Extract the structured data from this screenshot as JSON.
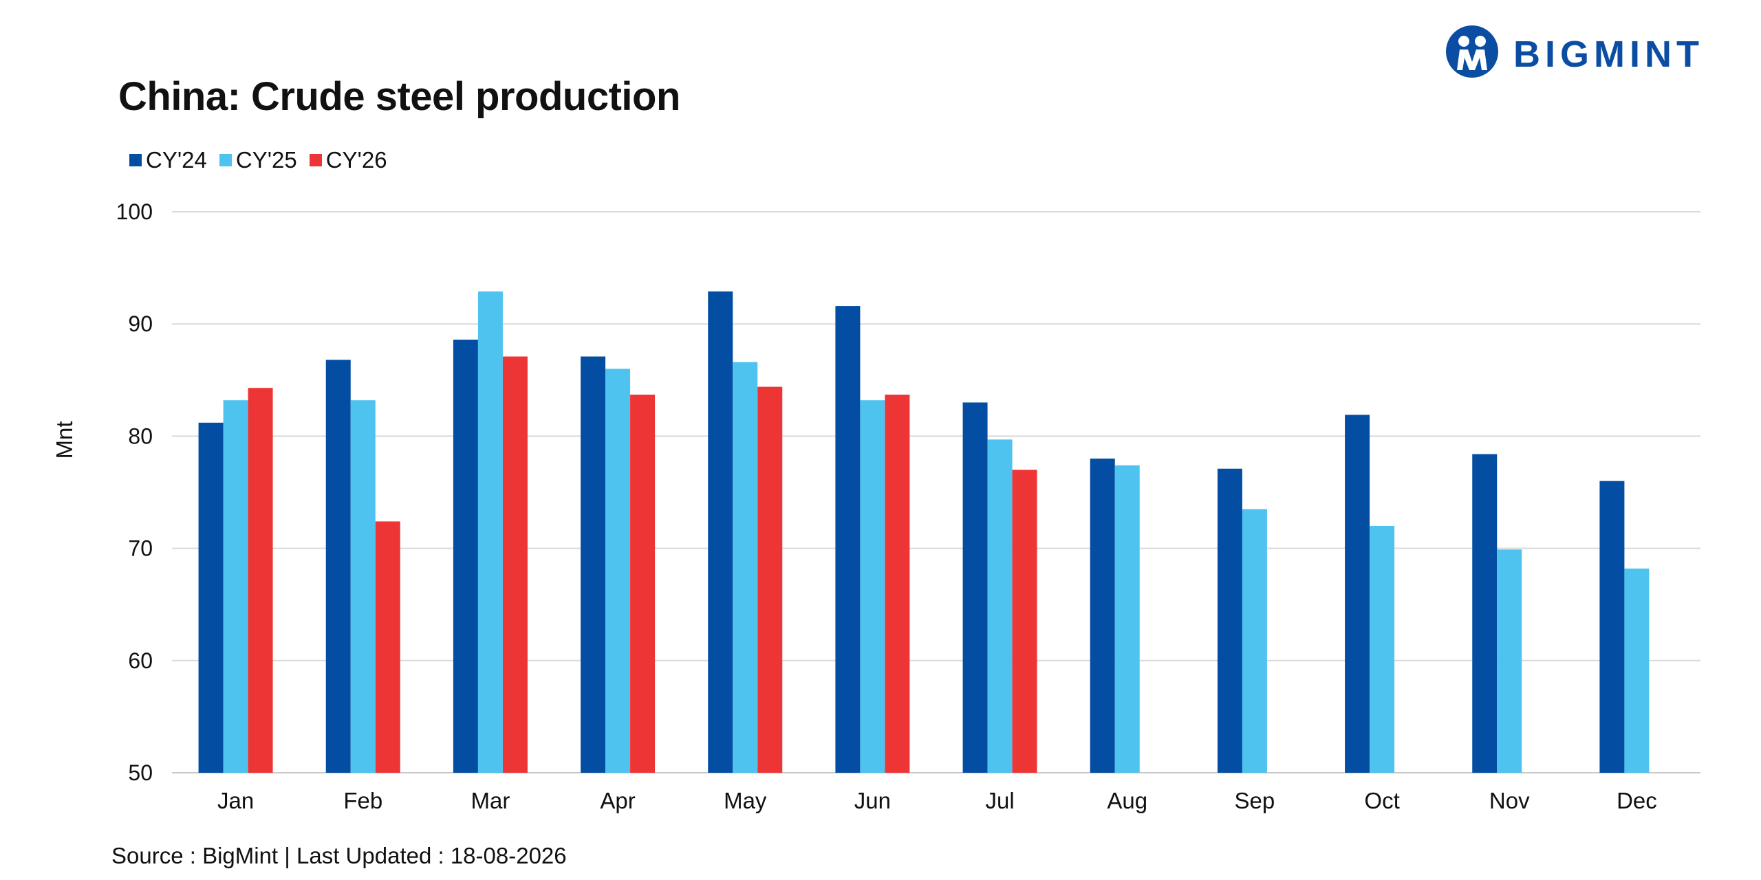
{
  "brand": {
    "name": "BIGMINT",
    "color": "#0A4DA2"
  },
  "chart_data": {
    "type": "bar",
    "title": "China: Crude steel production",
    "ylabel": "Mnt",
    "xlabel": "",
    "ylim": [
      50,
      100
    ],
    "yticks": [
      50,
      60,
      70,
      80,
      90,
      100
    ],
    "grid": true,
    "legend_position": "top-left",
    "categories": [
      "Jan",
      "Feb",
      "Mar",
      "Apr",
      "May",
      "Jun",
      "Jul",
      "Aug",
      "Sep",
      "Oct",
      "Nov",
      "Dec"
    ],
    "series": [
      {
        "name": "CY'24",
        "color": "#034EA2",
        "values": [
          81.2,
          86.8,
          88.6,
          87.1,
          92.9,
          91.6,
          83.0,
          78.0,
          77.1,
          81.9,
          78.4,
          76.0
        ]
      },
      {
        "name": "CY'25",
        "color": "#4FC3F0",
        "values": [
          83.2,
          83.2,
          92.9,
          86.0,
          86.6,
          83.2,
          79.7,
          77.4,
          73.5,
          72.0,
          69.9,
          68.2
        ]
      },
      {
        "name": "CY'26",
        "color": "#EE3535",
        "values": [
          84.3,
          72.4,
          87.1,
          83.7,
          84.4,
          83.7,
          77.0,
          null,
          null,
          null,
          null,
          null
        ]
      }
    ]
  },
  "source_text": "Source : BigMint | Last Updated : 18-08-2026"
}
